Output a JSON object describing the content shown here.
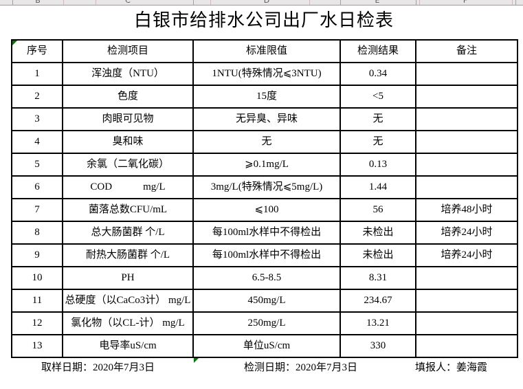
{
  "title": "白银市给排水公司出厂水日检表",
  "excel_strip": {
    "letters": [
      "B",
      "C",
      "D",
      "E",
      "F"
    ]
  },
  "table": {
    "headers": [
      "序号",
      "检测项目",
      "标准限值",
      "检测结果",
      "备注"
    ],
    "rows": [
      {
        "no": "1",
        "item": "浑浊度（NTU）",
        "standard": "1NTU(特殊情况⩽3NTU)",
        "result": "0.34",
        "remark": ""
      },
      {
        "no": "2",
        "item": "色度",
        "standard": "15度",
        "result": "<5",
        "remark": ""
      },
      {
        "no": "3",
        "item": "肉眼可见物",
        "standard": "无异臭、异味",
        "result": "无",
        "remark": ""
      },
      {
        "no": "4",
        "item": "臭和味",
        "standard": "无",
        "result": "无",
        "remark": ""
      },
      {
        "no": "5",
        "item": "余氯（二氧化碳）",
        "standard": "⩾0.1mg/L",
        "result": "0.13",
        "remark": ""
      },
      {
        "no": "6",
        "item": "COD            mg/L",
        "standard": "3mg/L(特殊情况⩽5mg/L)",
        "result": "1.44",
        "remark": ""
      },
      {
        "no": "7",
        "item": "菌落总数CFU/mL",
        "standard": "⩽100",
        "result": "56",
        "remark": "培养48小时"
      },
      {
        "no": "8",
        "item": "总大肠菌群 个/L",
        "standard": "每100ml水样中不得检出",
        "result": "未检出",
        "remark": "培养24小时"
      },
      {
        "no": "9",
        "item": "耐热大肠菌群 个/L",
        "standard": "每100ml水样中不得检出",
        "result": "未检出",
        "remark": "培养24小时"
      },
      {
        "no": "10",
        "item": "PH",
        "standard": "6.5-8.5",
        "result": "8.31",
        "remark": ""
      },
      {
        "no": "11",
        "item": "总硬度（以CaCo3计） mg/L",
        "standard": "450mg/L",
        "result": "234.67",
        "remark": ""
      },
      {
        "no": "12",
        "item": "氯化物（以CL-计） mg/L",
        "standard": "250mg/L",
        "result": "13.21",
        "remark": ""
      },
      {
        "no": "13",
        "item": "电导率uS/cm",
        "standard": "单位uS/cm",
        "result": "330",
        "remark": ""
      }
    ]
  },
  "footer": {
    "sampling": "取样日期：2020年7月3日",
    "testing": "检测日期：2020年7月3日",
    "reporter": "填报人：姜海霞"
  },
  "colors": {
    "indicator_green": "#007b00",
    "strip_bg": "#e8e6e7",
    "table_border": "#000000"
  },
  "icons": {
    "corner_indicator": "cell-error-indicator-icon"
  }
}
